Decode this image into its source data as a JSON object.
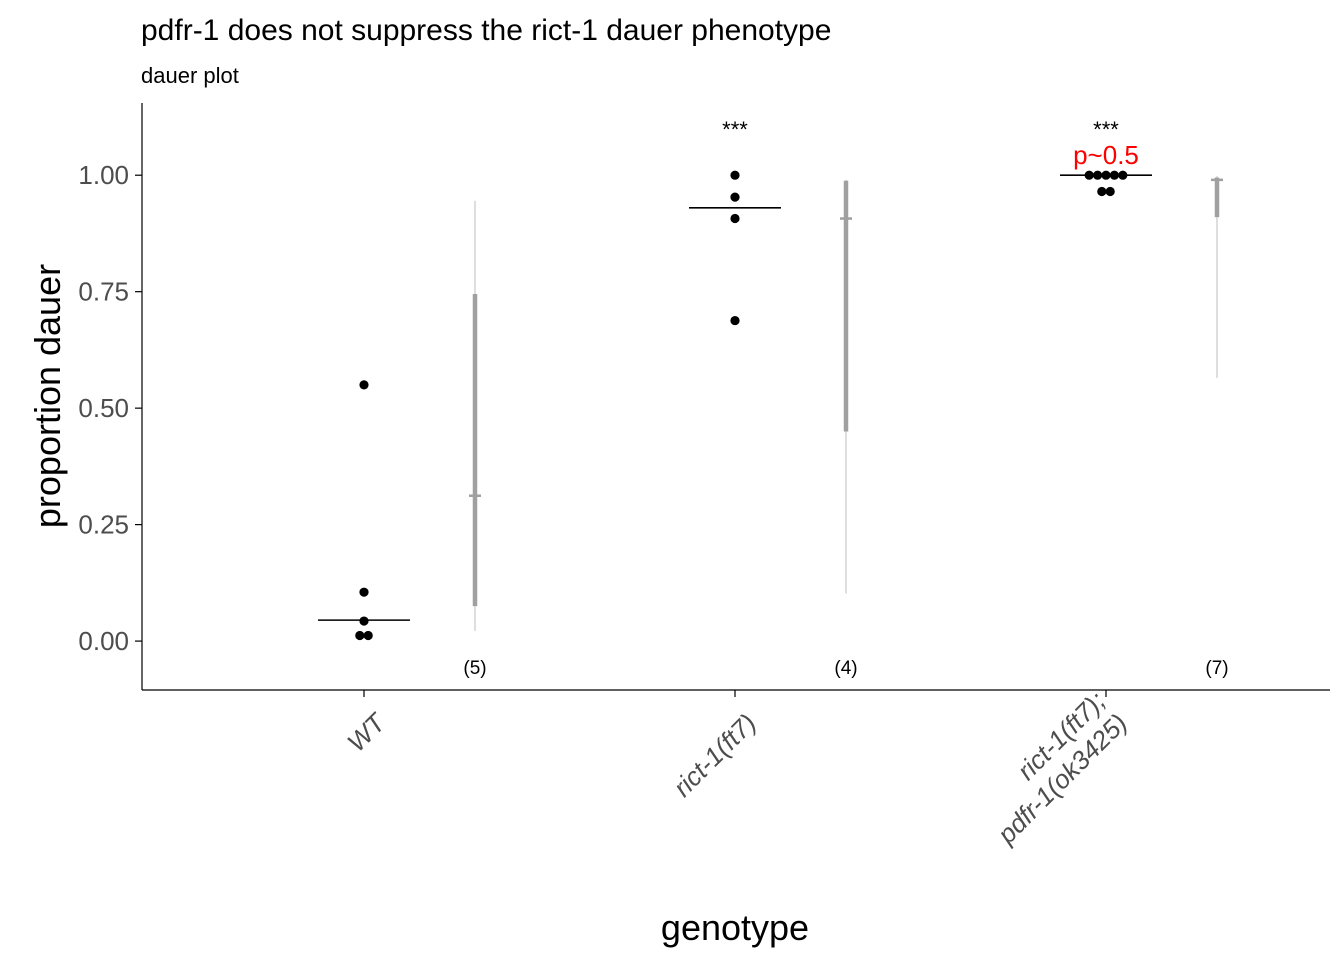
{
  "chart_data": {
    "type": "scatter",
    "title": "pdfr-1 does not suppress the rict-1 dauer phenotype",
    "subtitle": "dauer plot",
    "xlabel": "genotype",
    "ylabel": "proportion dauer",
    "ylim": [
      -0.105,
      1.155
    ],
    "yticks": [
      {
        "value": 0.0,
        "label": "0.00"
      },
      {
        "value": 0.25,
        "label": "0.25"
      },
      {
        "value": 0.5,
        "label": "0.50"
      },
      {
        "value": 0.75,
        "label": "0.75"
      },
      {
        "value": 1.0,
        "label": "1.00"
      }
    ],
    "grid": false,
    "legend": "none",
    "colors": {
      "points": "#000000",
      "interval": "#a0a0a0",
      "interval_thin": "#cccccc",
      "pvalue": "#ff0000",
      "axis": "#000000"
    },
    "groups": [
      {
        "category_lines": [
          "WT"
        ],
        "points": [
          0.55,
          0.105,
          0.043,
          0.012,
          0.012
        ],
        "point_offsets": [
          0,
          0,
          0,
          -0.5,
          0.5
        ],
        "mean": 0.045,
        "interval_inner": [
          0.075,
          0.745
        ],
        "interval_outer": [
          0.022,
          0.945
        ],
        "interval_mid": 0.312,
        "n_label": "(5)",
        "sig_label": "",
        "p_label": ""
      },
      {
        "category_lines": [
          "rict-1(ft7)"
        ],
        "points": [
          1.0,
          0.953,
          0.907,
          0.688
        ],
        "point_offsets": [
          0,
          0,
          0,
          0
        ],
        "mean": 0.93,
        "interval_inner": [
          0.45,
          0.988
        ],
        "interval_outer": [
          0.102,
          0.99
        ],
        "interval_mid": 0.907,
        "n_label": "(4)",
        "sig_label": "***",
        "p_label": ""
      },
      {
        "category_lines": [
          "rict-1(ft7);",
          "pdfr-1(ok3425)"
        ],
        "points": [
          1.0,
          1.0,
          1.0,
          1.0,
          1.0,
          0.965,
          0.965
        ],
        "point_offsets": [
          -2,
          -1,
          0,
          1,
          2,
          -0.5,
          0.5
        ],
        "mean": 1.0,
        "interval_inner": [
          0.91,
          0.995
        ],
        "interval_outer": [
          0.565,
          0.998
        ],
        "interval_mid": 0.99,
        "n_label": "(7)",
        "sig_label": "***",
        "p_label": "p~0.5"
      }
    ]
  }
}
